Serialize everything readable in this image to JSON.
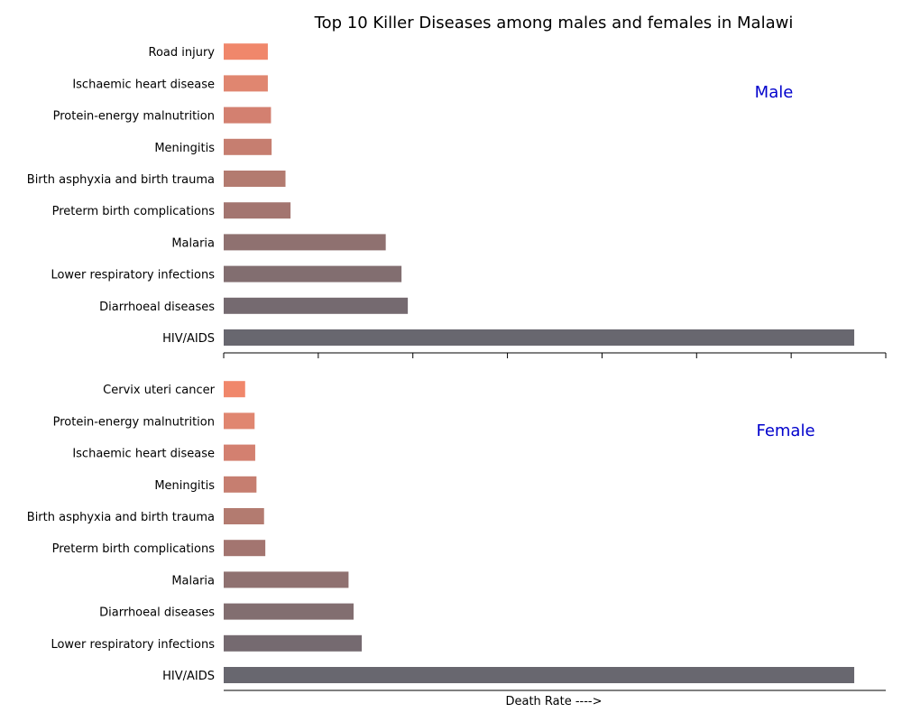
{
  "chart_data": [
    {
      "type": "bar",
      "orientation": "horizontal",
      "title": "Top 10 Killer Diseases among males and females in Malawi",
      "panel_label": "Male",
      "panel_label_color": "#0000cc",
      "categories": [
        "HIV/AIDS",
        "Diarrhoeal diseases",
        "Lower respiratory infections",
        "Malaria",
        "Preterm birth complications",
        "Birth asphyxia and birth trauma",
        "Meningitis",
        "Protein-energy malnutrition",
        "Ischaemic heart disease",
        "Road injury"
      ],
      "values": [
        100,
        29.2,
        28.2,
        25.7,
        10.6,
        9.8,
        7.6,
        7.5,
        7.0,
        7.0
      ],
      "bar_colors": [
        "#68676f",
        "#756a70",
        "#826e70",
        "#8f7170",
        "#a37570",
        "#b37b70",
        "#c67e70",
        "#d38070",
        "#e08670",
        "#f0876b"
      ],
      "xlim": [
        0,
        105
      ]
    },
    {
      "type": "bar",
      "orientation": "horizontal",
      "panel_label": "Female",
      "panel_label_color": "#0000cc",
      "xlabel": "Death Rate ---->",
      "categories": [
        "HIV/AIDS",
        "Lower respiratory infections",
        "Diarrhoeal diseases",
        "Malaria",
        "Preterm birth complications",
        "Birth asphyxia and birth trauma",
        "Meningitis",
        "Ischaemic heart disease",
        "Protein-energy malnutrition",
        "Cervix uteri cancer"
      ],
      "values": [
        100,
        21.9,
        20.6,
        19.8,
        6.6,
        6.4,
        5.2,
        5.0,
        4.9,
        3.4
      ],
      "bar_colors": [
        "#68676f",
        "#756a70",
        "#826e70",
        "#8f7170",
        "#a37570",
        "#b37b70",
        "#c67e70",
        "#d38070",
        "#e08670",
        "#f0876b"
      ],
      "xlim": [
        0,
        105
      ]
    }
  ]
}
